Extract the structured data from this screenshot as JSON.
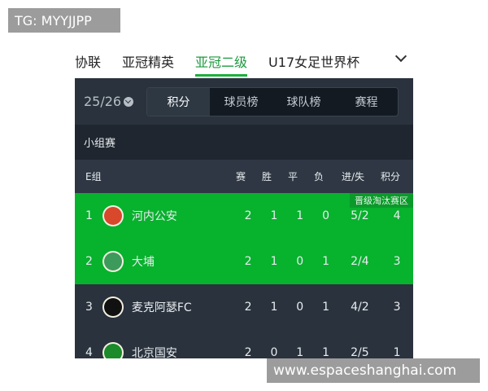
{
  "watermarks": {
    "top": "TG: MYYJJPP",
    "bottom": "www.espaceshanghai.com"
  },
  "nav": {
    "tabs": [
      "协联",
      "亚冠精英",
      "亚冠二级",
      "U17女足世界杯"
    ],
    "active": "亚冠二级",
    "more_icon": "chevron-down-icon"
  },
  "season": "25/26",
  "segments": [
    "积分",
    "球员榜",
    "球队榜",
    "赛程"
  ],
  "active_segment": "积分",
  "stage": "小组赛",
  "table": {
    "group": "E组",
    "columns": [
      "赛",
      "胜",
      "平",
      "负",
      "进/失",
      "积分"
    ],
    "zone_label": "晋级淘汰赛区",
    "zone_color": "#07b22d",
    "rows": [
      {
        "rank": "1",
        "team": "河内公安",
        "p": "2",
        "w": "1",
        "d": "1",
        "l": "0",
        "gd": "5/2",
        "pts": "4",
        "logo_color": "#d9482b"
      },
      {
        "rank": "2",
        "team": "大埔",
        "p": "2",
        "w": "1",
        "d": "0",
        "l": "1",
        "gd": "2/4",
        "pts": "3",
        "logo_color": "#3c9a5a"
      },
      {
        "rank": "3",
        "team": "麦克阿瑟FC",
        "p": "2",
        "w": "1",
        "d": "0",
        "l": "1",
        "gd": "4/2",
        "pts": "3",
        "logo_color": "#111111"
      },
      {
        "rank": "4",
        "team": "北京国安",
        "p": "2",
        "w": "0",
        "d": "1",
        "l": "1",
        "gd": "2/5",
        "pts": "1",
        "logo_color": "#1a8a2a"
      }
    ]
  }
}
